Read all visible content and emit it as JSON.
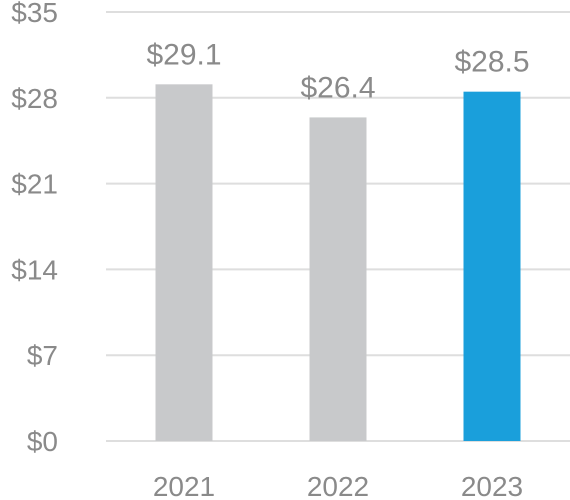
{
  "chart_data": {
    "type": "bar",
    "title": "",
    "xlabel": "",
    "ylabel": "",
    "categories": [
      "2021",
      "2022",
      "2023"
    ],
    "values": [
      29.1,
      26.4,
      28.5
    ],
    "data_labels": [
      "$29.1",
      "$26.4",
      "$28.5"
    ],
    "ylim": [
      0,
      35
    ],
    "yticks": [
      0,
      7,
      14,
      21,
      28,
      35
    ],
    "ytick_labels": [
      "$0",
      "$7",
      "$14",
      "$21",
      "$28",
      "$35"
    ],
    "grid": true,
    "legend": "none",
    "colors": {
      "bars": [
        "#c8c9cb",
        "#c8c9cb",
        "#1a9fdb"
      ],
      "gridline": "#dedede",
      "text": "#8a8a8a"
    }
  }
}
